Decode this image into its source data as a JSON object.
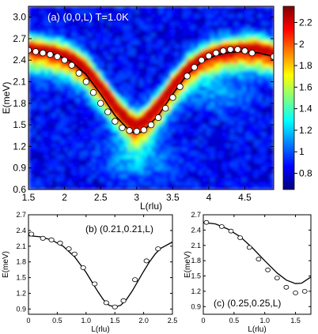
{
  "chart_data": [
    {
      "type": "heatmap",
      "panel": "a",
      "annotation": "(a) (0,0,L)  T=1.0K",
      "xlabel": "L(rlu)",
      "ylabel": "E(meV)",
      "xlim": [
        1.5,
        4.9
      ],
      "ylim": [
        0.6,
        3.15
      ],
      "xticks": [
        "1.5",
        "2",
        "2.5",
        "3",
        "3.5",
        "4",
        "4.5"
      ],
      "yticks": [
        "0.6",
        "0.9",
        "1.2",
        "1.5",
        "1.8",
        "2.1",
        "2.4",
        "2.7",
        "3.0"
      ],
      "colorbar": {
        "min": 0.65,
        "max": 2.35,
        "ticks": [
          "0.8",
          "1",
          "1.2",
          "1.4",
          "1.6",
          "1.8",
          "2",
          "2.2"
        ],
        "colors": [
          "#00007f",
          "#0000ff",
          "#0080ff",
          "#00ffff",
          "#80ff80",
          "#ffff00",
          "#ff8000",
          "#ff0000",
          "#7f0000"
        ]
      },
      "points": {
        "x": [
          1.5,
          1.6,
          1.7,
          1.8,
          1.9,
          2.0,
          2.1,
          2.2,
          2.3,
          2.4,
          2.5,
          2.6,
          2.7,
          2.8,
          2.9,
          3.0,
          3.1,
          3.2,
          3.3,
          3.4,
          3.5,
          3.6,
          3.7,
          3.8,
          3.9,
          4.0,
          4.1,
          4.2,
          4.3,
          4.4,
          4.5,
          4.6,
          4.9
        ],
        "y": [
          2.54,
          2.52,
          2.5,
          2.48,
          2.45,
          2.4,
          2.33,
          2.22,
          2.1,
          1.95,
          1.8,
          1.68,
          1.55,
          1.46,
          1.42,
          1.41,
          1.43,
          1.5,
          1.6,
          1.73,
          1.88,
          2.03,
          2.18,
          2.3,
          2.4,
          2.46,
          2.5,
          2.53,
          2.55,
          2.55,
          2.53,
          2.5,
          2.45
        ]
      },
      "curve": {
        "x": [
          1.5,
          1.7,
          1.9,
          2.1,
          2.3,
          2.5,
          2.7,
          2.9,
          3.0,
          3.1,
          3.3,
          3.5,
          3.7,
          3.9,
          4.1,
          4.3,
          4.5,
          4.7,
          4.9
        ],
        "y": [
          2.53,
          2.51,
          2.47,
          2.38,
          2.2,
          1.93,
          1.63,
          1.42,
          1.37,
          1.42,
          1.63,
          1.93,
          2.2,
          2.38,
          2.47,
          2.51,
          2.52,
          2.5,
          2.45
        ]
      },
      "dispersion_band": {
        "x": [
          1.5,
          1.7,
          1.9,
          2.1,
          2.3,
          2.5,
          2.7,
          2.9,
          3.0,
          3.1,
          3.3,
          3.5,
          3.7,
          3.9,
          4.1,
          4.3,
          4.5,
          4.7,
          4.9
        ],
        "y": [
          2.56,
          2.54,
          2.5,
          2.42,
          2.27,
          2.03,
          1.76,
          1.55,
          1.5,
          1.55,
          1.76,
          2.03,
          2.27,
          2.42,
          2.5,
          2.54,
          2.56,
          2.55,
          2.5
        ]
      }
    },
    {
      "type": "scatter",
      "panel": "b",
      "annotation": "(b) (0.21,0.21,L)",
      "xlabel": "L(rlu)",
      "ylabel": "E(meV)",
      "xlim": [
        0,
        2.5
      ],
      "ylim": [
        0.8,
        2.7
      ],
      "xticks": [
        "0",
        "0.5",
        "1.0",
        "1.5",
        "2.0",
        "2.5"
      ],
      "yticks": [
        "0.9",
        "1.2",
        "1.5",
        "1.8",
        "2.1",
        "2.4",
        "2.7"
      ],
      "points": {
        "x": [
          0.05,
          0.25,
          0.4,
          0.55,
          0.7,
          0.8,
          0.95,
          1.15,
          1.35,
          1.5,
          1.65,
          1.85,
          2.05,
          2.25
        ],
        "y": [
          2.33,
          2.25,
          2.22,
          2.16,
          2.05,
          1.95,
          1.69,
          1.38,
          1.02,
          0.94,
          1.06,
          1.46,
          1.82,
          2.05
        ]
      },
      "curve": {
        "x": [
          0,
          0.2,
          0.4,
          0.6,
          0.8,
          1.0,
          1.1,
          1.2,
          1.3,
          1.4,
          1.5,
          1.6,
          1.7,
          1.8,
          1.9,
          2.0,
          2.1,
          2.2,
          2.3,
          2.5
        ],
        "y": [
          2.3,
          2.28,
          2.22,
          2.1,
          1.9,
          1.6,
          1.42,
          1.24,
          1.08,
          0.97,
          0.94,
          0.97,
          1.08,
          1.24,
          1.43,
          1.62,
          1.8,
          1.95,
          2.06,
          2.18
        ]
      }
    },
    {
      "type": "scatter",
      "panel": "c",
      "annotation": "(c) (0.25,0.25,L)",
      "xlabel": "L(rlu)",
      "ylabel": "E(meV)",
      "xlim": [
        0,
        1.75
      ],
      "ylim": [
        0.75,
        2.7
      ],
      "xticks": [
        "0",
        "0.5",
        "1.0",
        "1.5"
      ],
      "yticks": [
        "0.9",
        "1.2",
        "1.5",
        "1.8",
        "2.1",
        "2.4",
        "2.7"
      ],
      "points": {
        "x": [
          0.05,
          0.3,
          0.45,
          0.6,
          0.75,
          0.9,
          1.05,
          1.2,
          1.35,
          1.5,
          1.65
        ],
        "y": [
          2.55,
          2.47,
          2.38,
          2.25,
          2.06,
          1.83,
          1.62,
          1.46,
          1.28,
          1.17,
          1.2
        ]
      },
      "curve": {
        "x": [
          0,
          0.2,
          0.4,
          0.6,
          0.8,
          1.0,
          1.2,
          1.35,
          1.5,
          1.6,
          1.75
        ],
        "y": [
          2.55,
          2.52,
          2.42,
          2.27,
          2.05,
          1.8,
          1.56,
          1.42,
          1.35,
          1.36,
          1.48
        ]
      }
    }
  ]
}
